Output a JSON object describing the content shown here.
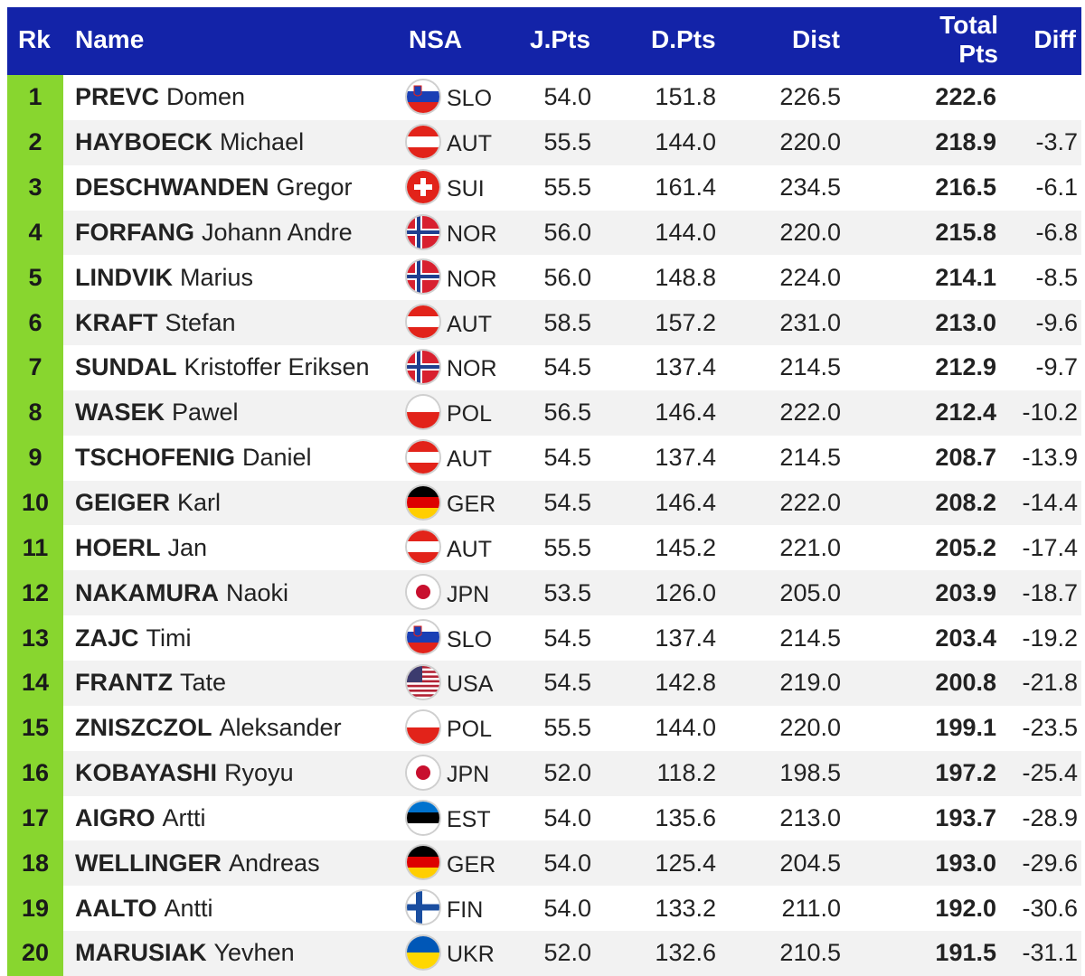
{
  "headers": {
    "rank": "Rk",
    "name": "Name",
    "nsa": "NSA",
    "jpts": "J.Pts",
    "dpts": "D.Pts",
    "dist": "Dist",
    "total_line1": "Total",
    "total_line2": "Pts",
    "diff": "Diff"
  },
  "colors": {
    "header_bg": "#1323a8",
    "rank_bg": "#88d62f",
    "row_alt": "#f2f2f2"
  },
  "rows": [
    {
      "rank": "1",
      "last": "PREVC",
      "first": "Domen",
      "flag": "slo-flag-icon",
      "nsa": "SLO",
      "jpts": "54.0",
      "dpts": "151.8",
      "dist": "226.5",
      "total": "222.6",
      "diff": ""
    },
    {
      "rank": "2",
      "last": "HAYBOECK",
      "first": "Michael",
      "flag": "aut-flag-icon",
      "nsa": "AUT",
      "jpts": "55.5",
      "dpts": "144.0",
      "dist": "220.0",
      "total": "218.9",
      "diff": "-3.7"
    },
    {
      "rank": "3",
      "last": "DESCHWANDEN",
      "first": "Gregor",
      "flag": "sui-flag-icon",
      "nsa": "SUI",
      "jpts": "55.5",
      "dpts": "161.4",
      "dist": "234.5",
      "total": "216.5",
      "diff": "-6.1"
    },
    {
      "rank": "4",
      "last": "FORFANG",
      "first": "Johann Andre",
      "flag": "nor-flag-icon",
      "nsa": "NOR",
      "jpts": "56.0",
      "dpts": "144.0",
      "dist": "220.0",
      "total": "215.8",
      "diff": "-6.8"
    },
    {
      "rank": "5",
      "last": "LINDVIK",
      "first": "Marius",
      "flag": "nor-flag-icon",
      "nsa": "NOR",
      "jpts": "56.0",
      "dpts": "148.8",
      "dist": "224.0",
      "total": "214.1",
      "diff": "-8.5"
    },
    {
      "rank": "6",
      "last": "KRAFT",
      "first": "Stefan",
      "flag": "aut-flag-icon",
      "nsa": "AUT",
      "jpts": "58.5",
      "dpts": "157.2",
      "dist": "231.0",
      "total": "213.0",
      "diff": "-9.6"
    },
    {
      "rank": "7",
      "last": "SUNDAL",
      "first": "Kristoffer Eriksen",
      "flag": "nor-flag-icon",
      "nsa": "NOR",
      "jpts": "54.5",
      "dpts": "137.4",
      "dist": "214.5",
      "total": "212.9",
      "diff": "-9.7"
    },
    {
      "rank": "8",
      "last": "WASEK",
      "first": "Pawel",
      "flag": "pol-flag-icon",
      "nsa": "POL",
      "jpts": "56.5",
      "dpts": "146.4",
      "dist": "222.0",
      "total": "212.4",
      "diff": "-10.2"
    },
    {
      "rank": "9",
      "last": "TSCHOFENIG",
      "first": "Daniel",
      "flag": "aut-flag-icon",
      "nsa": "AUT",
      "jpts": "54.5",
      "dpts": "137.4",
      "dist": "214.5",
      "total": "208.7",
      "diff": "-13.9"
    },
    {
      "rank": "10",
      "last": "GEIGER",
      "first": "Karl",
      "flag": "ger-flag-icon",
      "nsa": "GER",
      "jpts": "54.5",
      "dpts": "146.4",
      "dist": "222.0",
      "total": "208.2",
      "diff": "-14.4"
    },
    {
      "rank": "11",
      "last": "HOERL",
      "first": "Jan",
      "flag": "aut-flag-icon",
      "nsa": "AUT",
      "jpts": "55.5",
      "dpts": "145.2",
      "dist": "221.0",
      "total": "205.2",
      "diff": "-17.4"
    },
    {
      "rank": "12",
      "last": "NAKAMURA",
      "first": "Naoki",
      "flag": "jpn-flag-icon",
      "nsa": "JPN",
      "jpts": "53.5",
      "dpts": "126.0",
      "dist": "205.0",
      "total": "203.9",
      "diff": "-18.7"
    },
    {
      "rank": "13",
      "last": "ZAJC",
      "first": "Timi",
      "flag": "slo-flag-icon",
      "nsa": "SLO",
      "jpts": "54.5",
      "dpts": "137.4",
      "dist": "214.5",
      "total": "203.4",
      "diff": "-19.2"
    },
    {
      "rank": "14",
      "last": "FRANTZ",
      "first": "Tate",
      "flag": "usa-flag-icon",
      "nsa": "USA",
      "jpts": "54.5",
      "dpts": "142.8",
      "dist": "219.0",
      "total": "200.8",
      "diff": "-21.8"
    },
    {
      "rank": "15",
      "last": "ZNISZCZOL",
      "first": "Aleksander",
      "flag": "pol-flag-icon",
      "nsa": "POL",
      "jpts": "55.5",
      "dpts": "144.0",
      "dist": "220.0",
      "total": "199.1",
      "diff": "-23.5"
    },
    {
      "rank": "16",
      "last": "KOBAYASHI",
      "first": "Ryoyu",
      "flag": "jpn-flag-icon",
      "nsa": "JPN",
      "jpts": "52.0",
      "dpts": "118.2",
      "dist": "198.5",
      "total": "197.2",
      "diff": "-25.4"
    },
    {
      "rank": "17",
      "last": "AIGRO",
      "first": "Artti",
      "flag": "est-flag-icon",
      "nsa": "EST",
      "jpts": "54.0",
      "dpts": "135.6",
      "dist": "213.0",
      "total": "193.7",
      "diff": "-28.9"
    },
    {
      "rank": "18",
      "last": "WELLINGER",
      "first": "Andreas",
      "flag": "ger-flag-icon",
      "nsa": "GER",
      "jpts": "54.0",
      "dpts": "125.4",
      "dist": "204.5",
      "total": "193.0",
      "diff": "-29.6"
    },
    {
      "rank": "19",
      "last": "AALTO",
      "first": "Antti",
      "flag": "fin-flag-icon",
      "nsa": "FIN",
      "jpts": "54.0",
      "dpts": "133.2",
      "dist": "211.0",
      "total": "192.0",
      "diff": "-30.6"
    },
    {
      "rank": "20",
      "last": "MARUSIAK",
      "first": "Yevhen",
      "flag": "ukr-flag-icon",
      "nsa": "UKR",
      "jpts": "52.0",
      "dpts": "132.6",
      "dist": "210.5",
      "total": "191.5",
      "diff": "-31.1"
    }
  ]
}
